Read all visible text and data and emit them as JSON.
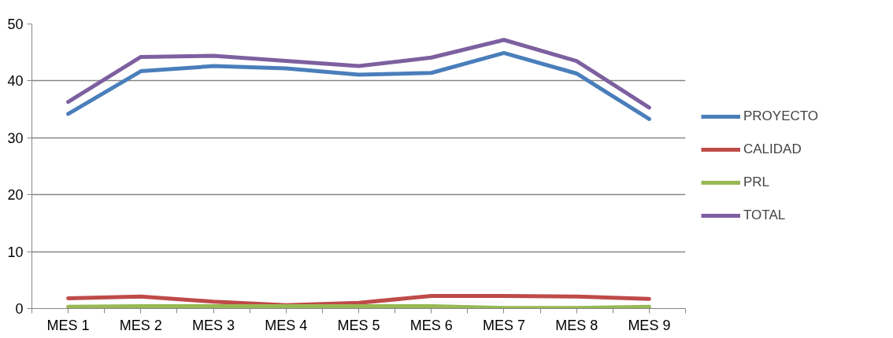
{
  "chart_data": {
    "type": "line",
    "categories": [
      "MES 1",
      "MES 2",
      "MES 3",
      "MES 4",
      "MES 5",
      "MES 6",
      "MES 7",
      "MES 8",
      "MES 9"
    ],
    "series": [
      {
        "name": "PROYECTO",
        "color": "#4a7ebb",
        "values": [
          34.2,
          41.7,
          42.6,
          42.2,
          41.1,
          41.4,
          44.9,
          41.3,
          33.3
        ]
      },
      {
        "name": "CALIDAD",
        "color": "#be4b48",
        "values": [
          1.8,
          2.1,
          1.2,
          0.6,
          1.0,
          2.2,
          2.2,
          2.1,
          1.7
        ]
      },
      {
        "name": "PRL",
        "color": "#98b954",
        "values": [
          0.3,
          0.4,
          0.4,
          0.4,
          0.4,
          0.4,
          0.1,
          0.1,
          0.3
        ]
      },
      {
        "name": "TOTAL",
        "color": "#7d60a0",
        "values": [
          36.3,
          44.2,
          44.4,
          43.5,
          42.6,
          44.1,
          47.2,
          43.5,
          35.3
        ]
      }
    ],
    "ylim": [
      0,
      50
    ],
    "yticks": [
      0,
      10,
      20,
      30,
      40,
      50
    ],
    "grid": "y",
    "legend": "right",
    "marker": "none",
    "line_style": "solid"
  }
}
